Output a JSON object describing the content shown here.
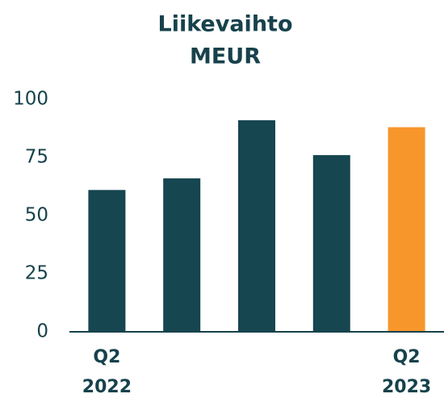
{
  "chart_data": {
    "type": "bar",
    "title": "Liikevaihto",
    "subtitle": "MEUR",
    "categories": [
      "Q2 2022",
      null,
      null,
      null,
      "Q2 2023"
    ],
    "values": [
      61,
      66,
      91,
      76,
      88
    ],
    "colors": [
      "#164650",
      "#164650",
      "#164650",
      "#164650",
      "#f7962b"
    ],
    "ylim": [
      0,
      100
    ],
    "yticks": [
      0,
      25,
      50,
      75,
      100
    ],
    "grid": false
  }
}
